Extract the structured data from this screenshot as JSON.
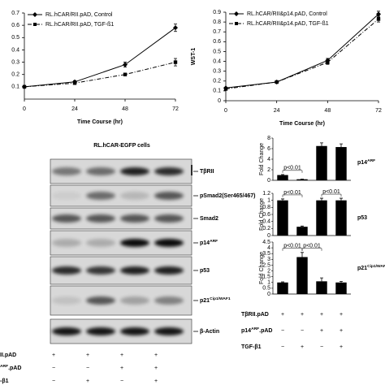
{
  "chart_data": [
    {
      "type": "line",
      "x": [
        0,
        24,
        48,
        72
      ],
      "xlim": [
        0,
        72
      ],
      "xticks": [
        0,
        24,
        48,
        72
      ],
      "ylim": [
        0,
        0.7
      ],
      "yticks": [
        0.1,
        0.2,
        0.3,
        0.4,
        0.5,
        0.6,
        0.7
      ],
      "x_label": "Time Course (hr)",
      "legend": "upper-left",
      "series": [
        {
          "name": "RL.hCAR/RII.pAD, Control",
          "color": "#000000",
          "marker": "diamond",
          "dash": "solid",
          "values": [
            0.1,
            0.14,
            0.28,
            0.58
          ],
          "errors": [
            0,
            0.01,
            0.02,
            0.03
          ]
        },
        {
          "name": "RL.hCAR/RII.pAD, TGF-ß1",
          "color": "#000000",
          "marker": "square",
          "dash": "dashed",
          "values": [
            0.1,
            0.13,
            0.2,
            0.3
          ],
          "errors": [
            0,
            0.01,
            0.01,
            0.03
          ]
        }
      ]
    },
    {
      "type": "line",
      "x": [
        0,
        24,
        48,
        72
      ],
      "xlim": [
        0,
        72
      ],
      "xticks": [
        0,
        24,
        48,
        72
      ],
      "ylim": [
        0,
        0.9
      ],
      "yticks": [
        0,
        0.1,
        0.2,
        0.3,
        0.4,
        0.5,
        0.6,
        0.7,
        0.8,
        0.9
      ],
      "x_label": "Time Course (hr)",
      "y_label": "WST-1",
      "legend": "upper-left",
      "series": [
        {
          "name": "RL.hCAR/RII&p14.pAD, Control",
          "color": "#000000",
          "marker": "diamond",
          "dash": "solid",
          "values": [
            0.13,
            0.19,
            0.41,
            0.88
          ],
          "errors": [
            0,
            0.01,
            0.02,
            0.03
          ]
        },
        {
          "name": "RL.hCAR/RII&p14.pAD, TGF-ß1",
          "color": "#000000",
          "marker": "square",
          "dash": "dashed",
          "values": [
            0.12,
            0.19,
            0.39,
            0.83
          ],
          "errors": [
            0,
            0.01,
            0.02,
            0.03
          ]
        }
      ]
    },
    {
      "type": "bar",
      "title": [
        {
          "text": "p14"
        },
        {
          "text": "ARF",
          "sup": true
        }
      ],
      "y_label": "Fold Change",
      "color": "#000000",
      "values": [
        1,
        0.2,
        6.5,
        6.3
      ],
      "errors": [
        0.1,
        0.05,
        0.6,
        0.6
      ],
      "ylim": [
        0,
        8
      ],
      "yticks": [
        0,
        2,
        4,
        6,
        8
      ],
      "annotations": [
        "p<0.01"
      ]
    },
    {
      "type": "bar",
      "title": [
        {
          "text": "p53"
        }
      ],
      "y_label": "Fold Change",
      "color": "#000000",
      "values": [
        1,
        0.25,
        1,
        1
      ],
      "errors": [
        0.04,
        0.02,
        0.06,
        0.06
      ],
      "ylim": [
        0,
        1.2
      ],
      "yticks": [
        0,
        0.2,
        0.4,
        0.6,
        0.8,
        1,
        1.2
      ],
      "annotations": [
        "p<0.01",
        "p<0.01"
      ]
    },
    {
      "type": "bar",
      "title": [
        {
          "text": "p21"
        },
        {
          "text": "Cip1/WAF1",
          "sup": true
        }
      ],
      "y_label": "Fold Change",
      "color": "#000000",
      "values": [
        1,
        3.2,
        1.1,
        1
      ],
      "errors": [
        0.05,
        0.4,
        0.3,
        0.1
      ],
      "ylim": [
        0,
        4.5
      ],
      "yticks": [
        0,
        0.5,
        1,
        1.5,
        2,
        2.5,
        3,
        3.5,
        4,
        4.5
      ],
      "annotations": [
        "p<0.01",
        "p<0.01"
      ]
    }
  ],
  "blot": {
    "title": "RL.hCAR-EGFP cells",
    "bands": [
      [
        {
          "text": "TβRII"
        }
      ],
      [
        {
          "text": "pSmad2(Ser465/467)"
        }
      ],
      [
        {
          "text": "Smad2"
        }
      ],
      [
        {
          "text": "p14"
        },
        {
          "text": "ARF",
          "sup": true
        }
      ],
      [
        {
          "text": "p53"
        }
      ],
      [
        {
          "text": "p21"
        },
        {
          "text": "Cip1/WAF1",
          "sup": true
        }
      ],
      [
        {
          "text": "β-Actin"
        }
      ]
    ],
    "rows": [
      {
        "label": [
          {
            "text": "II.pAD"
          }
        ],
        "signs": [
          "+",
          "+",
          "+",
          "+"
        ]
      },
      {
        "label": [
          {
            "text": "ARF",
            "sup": true
          },
          {
            "text": ".pAD"
          }
        ],
        "signs": [
          "−",
          "−",
          "+",
          "+"
        ]
      },
      {
        "label": [
          {
            "text": "-β1"
          }
        ],
        "signs": [
          "−",
          "+",
          "−",
          "+"
        ]
      }
    ]
  },
  "treatment_table": {
    "rows": [
      {
        "label": [
          {
            "text": "TβRII.pAD"
          }
        ],
        "signs": [
          "+",
          "+",
          "+",
          "+"
        ]
      },
      {
        "label": [
          {
            "text": "p14"
          },
          {
            "text": "ARF",
            "sup": true
          },
          {
            "text": ".pAD"
          }
        ],
        "signs": [
          "−",
          "−",
          "+",
          "+"
        ]
      },
      {
        "label": [
          {
            "text": "TGF-β1"
          }
        ],
        "signs": [
          "−",
          "+",
          "−",
          "+"
        ]
      }
    ]
  }
}
